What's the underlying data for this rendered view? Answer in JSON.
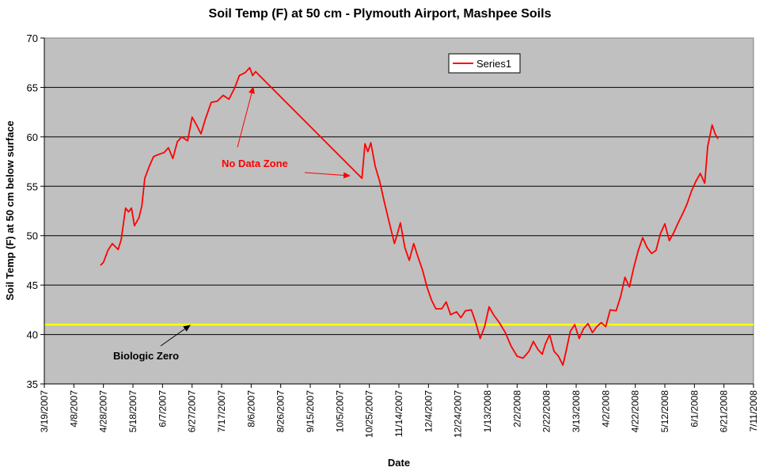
{
  "chart_data": {
    "type": "line",
    "title": "Soil Temp (F) at 50 cm - Plymouth Airport, Mashpee Soils",
    "xlabel": "Date",
    "ylabel": "Soil Temp (F) at 50 cm below surface",
    "ylim": [
      35,
      70
    ],
    "y_ticks": [
      35,
      40,
      45,
      50,
      55,
      60,
      65,
      70
    ],
    "xlim": [
      "3/19/2007",
      "7/11/2008"
    ],
    "x_ticks": [
      "3/19/2007",
      "4/8/2007",
      "4/28/2007",
      "5/18/2007",
      "6/7/2007",
      "6/27/2007",
      "7/17/2007",
      "8/6/2007",
      "8/26/2007",
      "9/15/2007",
      "10/5/2007",
      "10/25/2007",
      "11/14/2007",
      "12/4/2007",
      "12/24/2007",
      "1/13/2008",
      "2/2/2008",
      "2/22/2008",
      "3/13/2008",
      "4/2/2008",
      "4/22/2008",
      "5/12/2008",
      "6/1/2008",
      "6/21/2008",
      "7/11/2008"
    ],
    "grid": "horizontal",
    "legend_position": "top-right",
    "series": [
      {
        "name": "Series1",
        "color": "#ff0000",
        "points": [
          [
            "4/26/2007",
            47.0
          ],
          [
            "4/28/2007",
            47.3
          ],
          [
            "5/1/2007",
            48.5
          ],
          [
            "5/4/2007",
            49.2
          ],
          [
            "5/8/2007",
            48.6
          ],
          [
            "5/10/2007",
            49.6
          ],
          [
            "5/13/2007",
            52.8
          ],
          [
            "5/15/2007",
            52.4
          ],
          [
            "5/17/2007",
            52.8
          ],
          [
            "5/19/2007",
            51.0
          ],
          [
            "5/22/2007",
            51.8
          ],
          [
            "5/24/2007",
            53.0
          ],
          [
            "5/26/2007",
            55.8
          ],
          [
            "5/29/2007",
            57.0
          ],
          [
            "6/1/2007",
            58.0
          ],
          [
            "6/4/2007",
            58.2
          ],
          [
            "6/8/2007",
            58.4
          ],
          [
            "6/11/2007",
            58.9
          ],
          [
            "6/14/2007",
            57.8
          ],
          [
            "6/17/2007",
            59.5
          ],
          [
            "6/20/2007",
            60.0
          ],
          [
            "6/24/2007",
            59.6
          ],
          [
            "6/27/2007",
            62.0
          ],
          [
            "6/30/2007",
            61.2
          ],
          [
            "7/3/2007",
            60.3
          ],
          [
            "7/6/2007",
            61.8
          ],
          [
            "7/10/2007",
            63.5
          ],
          [
            "7/14/2007",
            63.6
          ],
          [
            "7/18/2007",
            64.2
          ],
          [
            "7/22/2007",
            63.8
          ],
          [
            "7/26/2007",
            65.0
          ],
          [
            "7/29/2007",
            66.2
          ],
          [
            "8/2/2007",
            66.5
          ],
          [
            "8/5/2007",
            67.0
          ],
          [
            "8/7/2007",
            66.2
          ],
          [
            "8/9/2007",
            66.6
          ],
          [
            "10/20/2007",
            55.8
          ],
          [
            "10/22/2007",
            59.3
          ],
          [
            "10/24/2007",
            58.5
          ],
          [
            "10/26/2007",
            59.4
          ],
          [
            "10/29/2007",
            57.0
          ],
          [
            "11/1/2007",
            55.5
          ],
          [
            "11/4/2007",
            53.5
          ],
          [
            "11/8/2007",
            51.0
          ],
          [
            "11/11/2007",
            49.2
          ],
          [
            "11/13/2007",
            50.2
          ],
          [
            "11/15/2007",
            51.3
          ],
          [
            "11/18/2007",
            48.8
          ],
          [
            "11/21/2007",
            47.5
          ],
          [
            "11/24/2007",
            49.2
          ],
          [
            "11/27/2007",
            47.8
          ],
          [
            "11/30/2007",
            46.5
          ],
          [
            "12/3/2007",
            44.8
          ],
          [
            "12/6/2007",
            43.5
          ],
          [
            "12/9/2007",
            42.6
          ],
          [
            "12/13/2007",
            42.6
          ],
          [
            "12/16/2007",
            43.3
          ],
          [
            "12/19/2007",
            42.0
          ],
          [
            "12/23/2007",
            42.3
          ],
          [
            "12/26/2007",
            41.7
          ],
          [
            "12/29/2007",
            42.4
          ],
          [
            "1/2/2008",
            42.5
          ],
          [
            "1/5/2008",
            41.2
          ],
          [
            "1/8/2008",
            39.6
          ],
          [
            "1/11/2008",
            40.8
          ],
          [
            "1/14/2008",
            42.8
          ],
          [
            "1/17/2008",
            42.0
          ],
          [
            "1/21/2008",
            41.2
          ],
          [
            "1/25/2008",
            40.2
          ],
          [
            "1/29/2008",
            38.8
          ],
          [
            "2/2/2008",
            37.8
          ],
          [
            "2/6/2008",
            37.6
          ],
          [
            "2/10/2008",
            38.3
          ],
          [
            "2/13/2008",
            39.3
          ],
          [
            "2/16/2008",
            38.5
          ],
          [
            "2/19/2008",
            38.0
          ],
          [
            "2/21/2008",
            39.0
          ],
          [
            "2/24/2008",
            40.0
          ],
          [
            "2/27/2008",
            38.3
          ],
          [
            "3/1/2008",
            37.8
          ],
          [
            "3/4/2008",
            36.9
          ],
          [
            "3/6/2008",
            38.2
          ],
          [
            "3/9/2008",
            40.3
          ],
          [
            "3/12/2008",
            41.0
          ],
          [
            "3/15/2008",
            39.6
          ],
          [
            "3/18/2008",
            40.6
          ],
          [
            "3/21/2008",
            41.1
          ],
          [
            "3/24/2008",
            40.2
          ],
          [
            "3/27/2008",
            40.8
          ],
          [
            "3/30/2008",
            41.2
          ],
          [
            "4/2/2008",
            40.8
          ],
          [
            "4/5/2008",
            42.5
          ],
          [
            "4/9/2008",
            42.4
          ],
          [
            "4/12/2008",
            43.8
          ],
          [
            "4/15/2008",
            45.8
          ],
          [
            "4/18/2008",
            44.8
          ],
          [
            "4/21/2008",
            46.8
          ],
          [
            "4/24/2008",
            48.5
          ],
          [
            "4/27/2008",
            49.8
          ],
          [
            "4/30/2008",
            48.8
          ],
          [
            "5/3/2008",
            48.2
          ],
          [
            "5/6/2008",
            48.5
          ],
          [
            "5/9/2008",
            50.2
          ],
          [
            "5/12/2008",
            51.2
          ],
          [
            "5/15/2008",
            49.5
          ],
          [
            "5/18/2008",
            50.3
          ],
          [
            "5/21/2008",
            51.3
          ],
          [
            "5/24/2008",
            52.2
          ],
          [
            "5/27/2008",
            53.2
          ],
          [
            "5/30/2008",
            54.5
          ],
          [
            "6/2/2008",
            55.5
          ],
          [
            "6/5/2008",
            56.3
          ],
          [
            "6/8/2008",
            55.3
          ],
          [
            "6/10/2008",
            59.0
          ],
          [
            "6/13/2008",
            61.2
          ],
          [
            "6/15/2008",
            60.3
          ],
          [
            "6/17/2008",
            59.8
          ]
        ]
      },
      {
        "name": "Biologic Zero",
        "color": "#ffff00",
        "constant": 41.0
      }
    ],
    "annotations": [
      {
        "text": "No Data Zone",
        "color": "#ff0000"
      },
      {
        "text": "Biologic Zero",
        "color": "#000000"
      }
    ]
  }
}
